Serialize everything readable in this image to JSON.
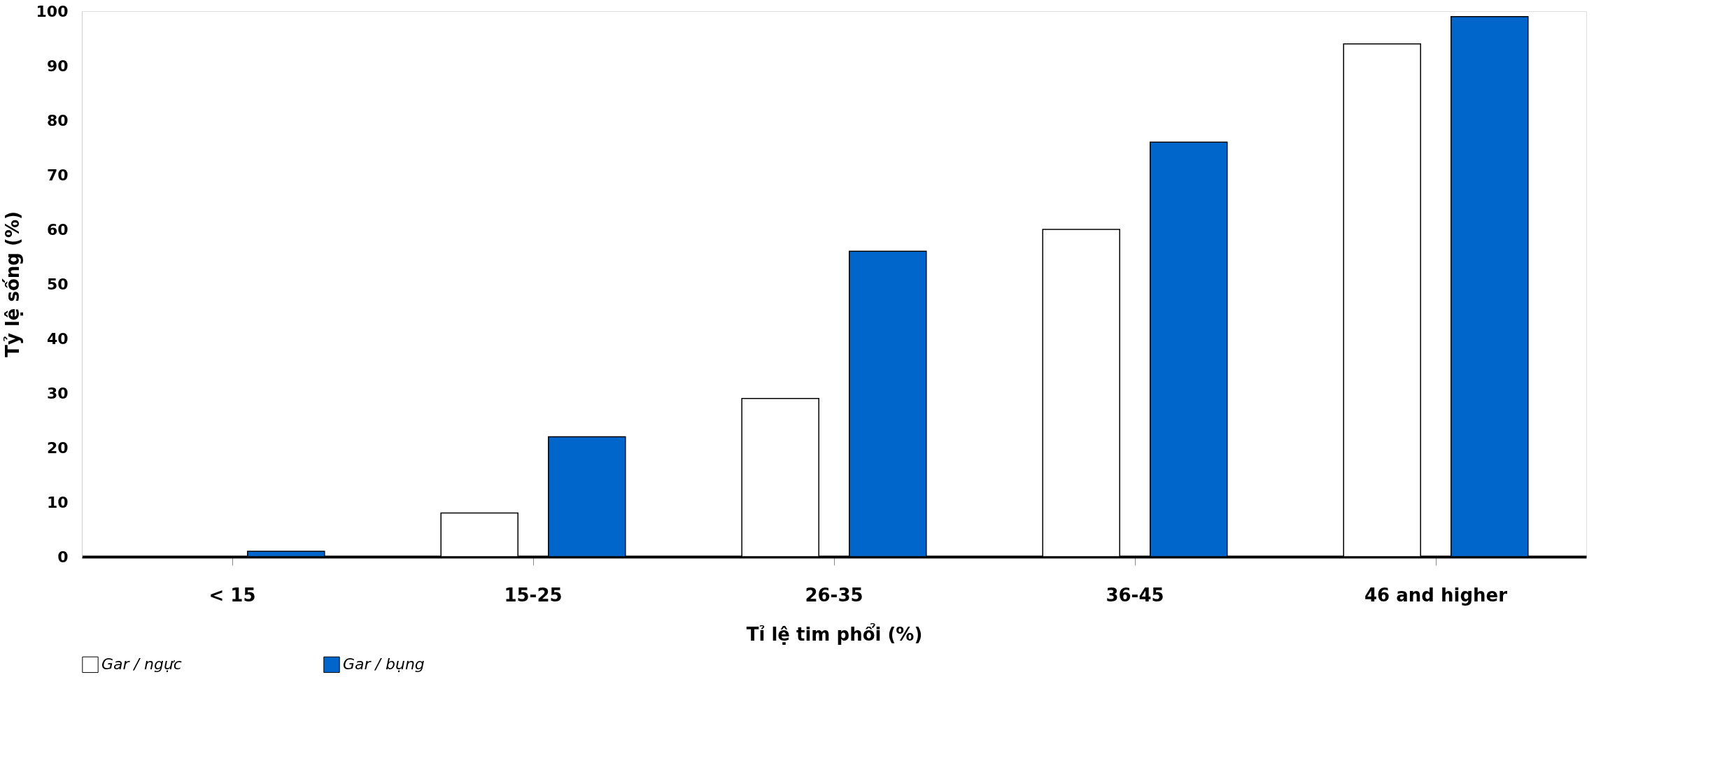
{
  "chart_data": {
    "type": "bar",
    "xlabel": "Tỉ lệ tim phổi (%)",
    "ylabel": "Tỷ lệ sống (%)",
    "categories": [
      "<    15",
      "15-25",
      "26-35",
      "36-45",
      "46 and higher"
    ],
    "series": [
      {
        "name": "Gar / ngực",
        "color": "#ffffff",
        "values": [
          null,
          8,
          29,
          60,
          94
        ]
      },
      {
        "name": "Gar / bụng",
        "color": "#0066cc",
        "values": [
          1,
          22,
          56,
          76,
          99
        ]
      }
    ],
    "ylim": [
      0,
      100
    ],
    "yticks": [
      0,
      10,
      20,
      30,
      40,
      50,
      60,
      70,
      80,
      90,
      100
    ],
    "grid": false,
    "legend": "bottom left"
  }
}
